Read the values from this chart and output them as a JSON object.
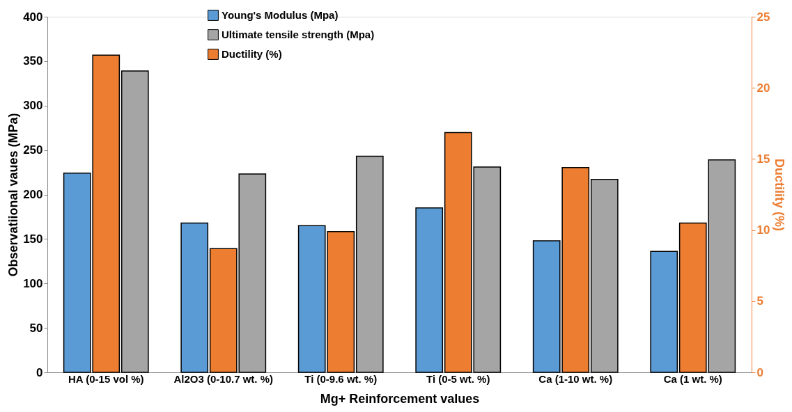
{
  "chart_data": {
    "type": "bar",
    "xlabel": "Mg+ Reinforcement values",
    "ylabel": "Observatiional vaues (MPa)",
    "y2label": "Ductility (%)",
    "categories": [
      "HA (0-15 vol %)",
      "Al2O3 (0-10.7 wt. %)",
      "Ti (0-9.6 wt. %)",
      "Ti (0-5 wt. %)",
      "Ca (1-10 wt. %)",
      "Ca (1 wt. %)"
    ],
    "series": [
      {
        "name": "Young's Modulus (Mpa)",
        "color": "#5b9bd5",
        "values": [
          224,
          168,
          165,
          185,
          148,
          136
        ]
      },
      {
        "name": "Ductility (%)",
        "color": "#ed7d31",
        "axis": "y2",
        "values": [
          22.3,
          8.7,
          9.9,
          16.85,
          14.4,
          10.5
        ]
      },
      {
        "name": "Ultimate tensile strength (Mpa)",
        "color": "#a5a5a5",
        "values": [
          339,
          223,
          243,
          231,
          217,
          239
        ]
      }
    ],
    "ylim": [
      0,
      400
    ],
    "yticks": [
      0,
      50,
      100,
      150,
      200,
      250,
      300,
      350,
      400
    ],
    "y2lim": [
      0,
      25
    ],
    "y2ticks": [
      0,
      5,
      10,
      15,
      20,
      25
    ],
    "grid": false,
    "legend": "top"
  }
}
